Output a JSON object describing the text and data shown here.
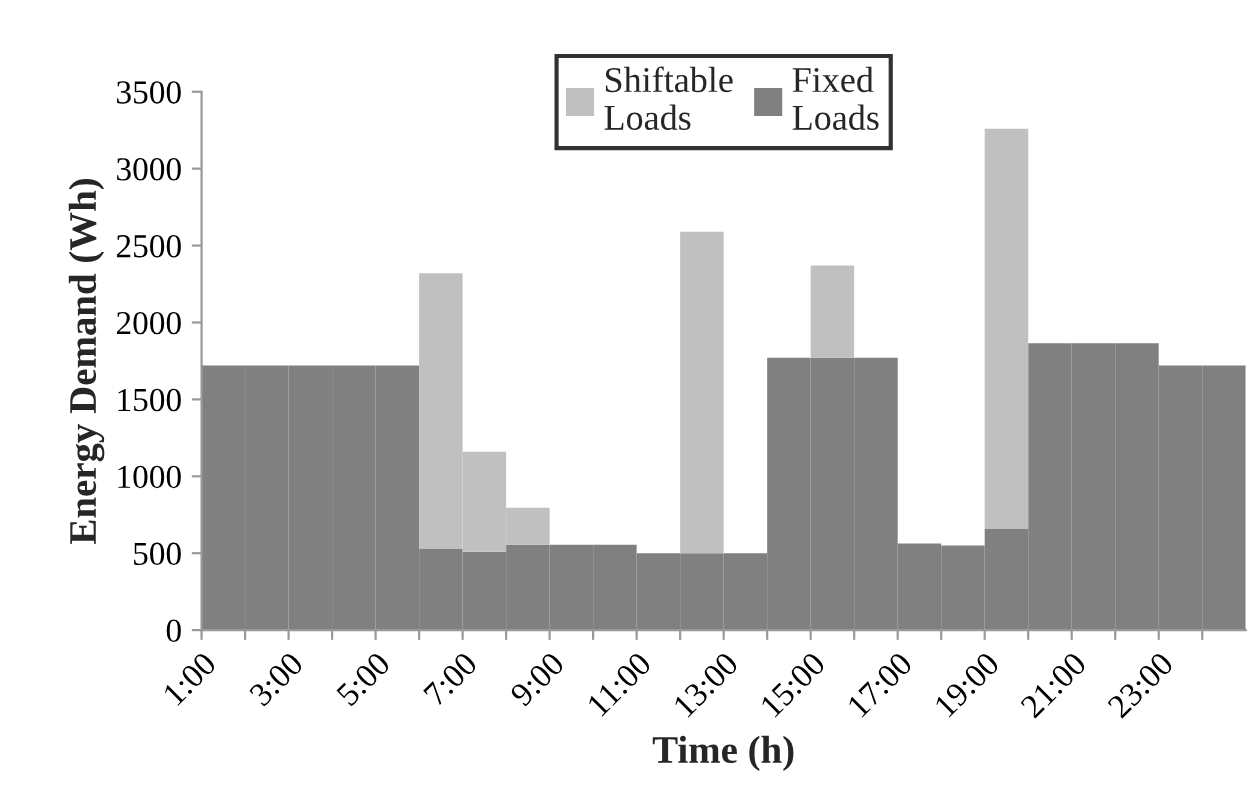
{
  "chart_data": {
    "type": "bar",
    "stacked": true,
    "xlabel": "Time (h)",
    "ylabel": "Energy Demand (Wh)",
    "categories": [
      "1:00",
      null,
      "3:00",
      null,
      "5:00",
      null,
      "7:00",
      null,
      "9:00",
      null,
      "11:00",
      null,
      "13:00",
      null,
      "15:00",
      null,
      "17:00",
      null,
      "19:00",
      null,
      "21:00",
      null,
      "23:00",
      null
    ],
    "series": [
      {
        "name": "Fixed\nLoads",
        "color": "#808080",
        "values": [
          1720,
          1720,
          1720,
          1720,
          1720,
          530,
          510,
          555,
          555,
          555,
          500,
          500,
          500,
          1770,
          1770,
          1770,
          563,
          550,
          660,
          1865,
          1865,
          1865,
          1720,
          1720
        ]
      },
      {
        "name": "Shiftable\nLoads",
        "color": "#c0c0c0",
        "values": [
          0,
          0,
          0,
          0,
          0,
          1790,
          650,
          240,
          0,
          0,
          0,
          2090,
          0,
          0,
          600,
          0,
          0,
          0,
          2600,
          0,
          0,
          0,
          0,
          0
        ]
      }
    ],
    "ylim": [
      0,
      3500
    ],
    "yticks": [
      0,
      500,
      1000,
      1500,
      2000,
      2500,
      3000,
      3500
    ],
    "grid": false,
    "legend": "top"
  }
}
